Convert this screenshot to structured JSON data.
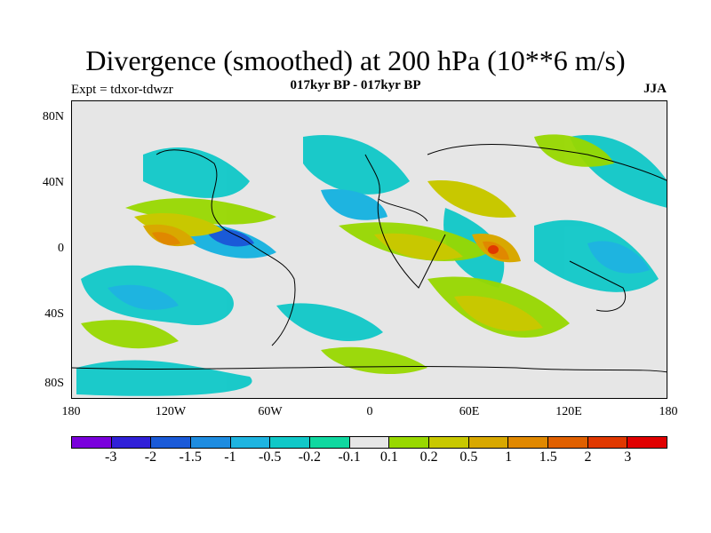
{
  "header": {
    "title": "Divergence (smoothed) at 200 hPa (10**6 m/s)",
    "subtitle": "017kyr BP - 017kyr BP",
    "experiment": "Expt = tdxor-tdwzr",
    "season": "JJA"
  },
  "map": {
    "lat_labels": [
      "80N",
      "40N",
      "0",
      "40S",
      "80S"
    ],
    "lon_labels": [
      "180",
      "120W",
      "60W",
      "0",
      "60E",
      "120E",
      "180"
    ],
    "background_color": "#e6e6e6"
  },
  "colorbar": {
    "colors": [
      "#7a00dc",
      "#3020d8",
      "#1a5ad8",
      "#1e8ce0",
      "#1eb4e0",
      "#10c8c8",
      "#10d8a0",
      "#e6e6e6",
      "#98d800",
      "#c8c800",
      "#d8a800",
      "#e08800",
      "#e06000",
      "#e03800",
      "#e00000"
    ],
    "labels": [
      "-3",
      "-2",
      "-1.5",
      "-1",
      "-0.5",
      "-0.2",
      "-0.1",
      "0.1",
      "0.2",
      "0.5",
      "1",
      "1.5",
      "2",
      "3"
    ]
  }
}
